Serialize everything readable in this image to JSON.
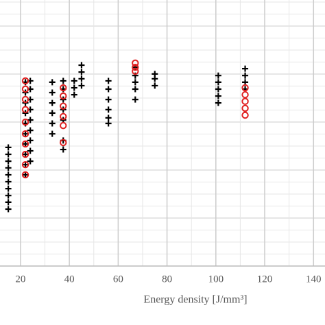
{
  "chart_data": {
    "type": "scatter",
    "x_label": "Energy density [J/mm³]",
    "xlim": [
      11.6,
      144.7
    ],
    "xticks": [
      20,
      40,
      60,
      80,
      100,
      120,
      140
    ],
    "ylim": [
      0,
      100
    ],
    "grid": true,
    "series": [
      {
        "marker": "plus",
        "color": "#000000",
        "x": [
          15,
          15,
          15,
          15,
          15,
          15,
          15,
          15,
          15,
          15,
          22,
          22,
          22,
          22,
          22,
          22,
          22,
          22,
          22,
          22,
          24,
          24,
          24,
          24,
          24,
          24,
          24,
          24,
          24,
          33,
          33,
          33,
          33,
          33,
          33,
          37.5,
          37.5,
          37.5,
          37.5,
          37.5,
          37.5,
          37.5,
          42,
          42,
          42,
          45,
          45,
          45,
          45,
          56,
          56,
          56,
          56,
          56,
          56,
          67,
          67,
          67,
          67,
          67,
          75,
          75,
          75,
          101,
          101,
          101,
          101,
          101,
          112,
          112,
          112,
          112
        ],
        "values": [
          44.6,
          42.0,
          39.4,
          36.9,
          34.3,
          31.7,
          29.1,
          26.5,
          24.0,
          21.4,
          69.1,
          65.2,
          61.3,
          57.5,
          53.6,
          49.7,
          45.9,
          42.0,
          38.1,
          34.3,
          69.6,
          66.5,
          62.6,
          58.8,
          54.9,
          51.0,
          47.2,
          43.3,
          39.4,
          69.1,
          65.2,
          61.3,
          57.5,
          53.6,
          49.7,
          69.6,
          66.5,
          62.6,
          58.8,
          54.9,
          47.2,
          43.8,
          69.6,
          67.0,
          64.4,
          75.5,
          72.9,
          70.4,
          67.8,
          69.6,
          66.5,
          62.6,
          58.8,
          55.7,
          53.6,
          74.7,
          71.6,
          69.1,
          66.5,
          62.6,
          72.2,
          70.4,
          67.8,
          71.6,
          69.1,
          66.5,
          63.9,
          61.3,
          74.2,
          71.6,
          69.1,
          66.5
        ]
      },
      {
        "marker": "circle",
        "color": "#e02020",
        "x": [
          22,
          22,
          22,
          22,
          22,
          22,
          22,
          22,
          22,
          22,
          37.5,
          37.5,
          37.5,
          37.5,
          37.5,
          37.5,
          67,
          67,
          67,
          112,
          112,
          112,
          112,
          112
        ],
        "values": [
          69.6,
          66.5,
          62.6,
          58.8,
          54.1,
          49.7,
          45.9,
          42.0,
          38.1,
          34.3,
          67.0,
          63.9,
          60.1,
          56.2,
          52.8,
          46.4,
          76.3,
          74.7,
          73.2,
          67.0,
          64.4,
          61.9,
          59.3,
          56.7
        ]
      }
    ]
  }
}
